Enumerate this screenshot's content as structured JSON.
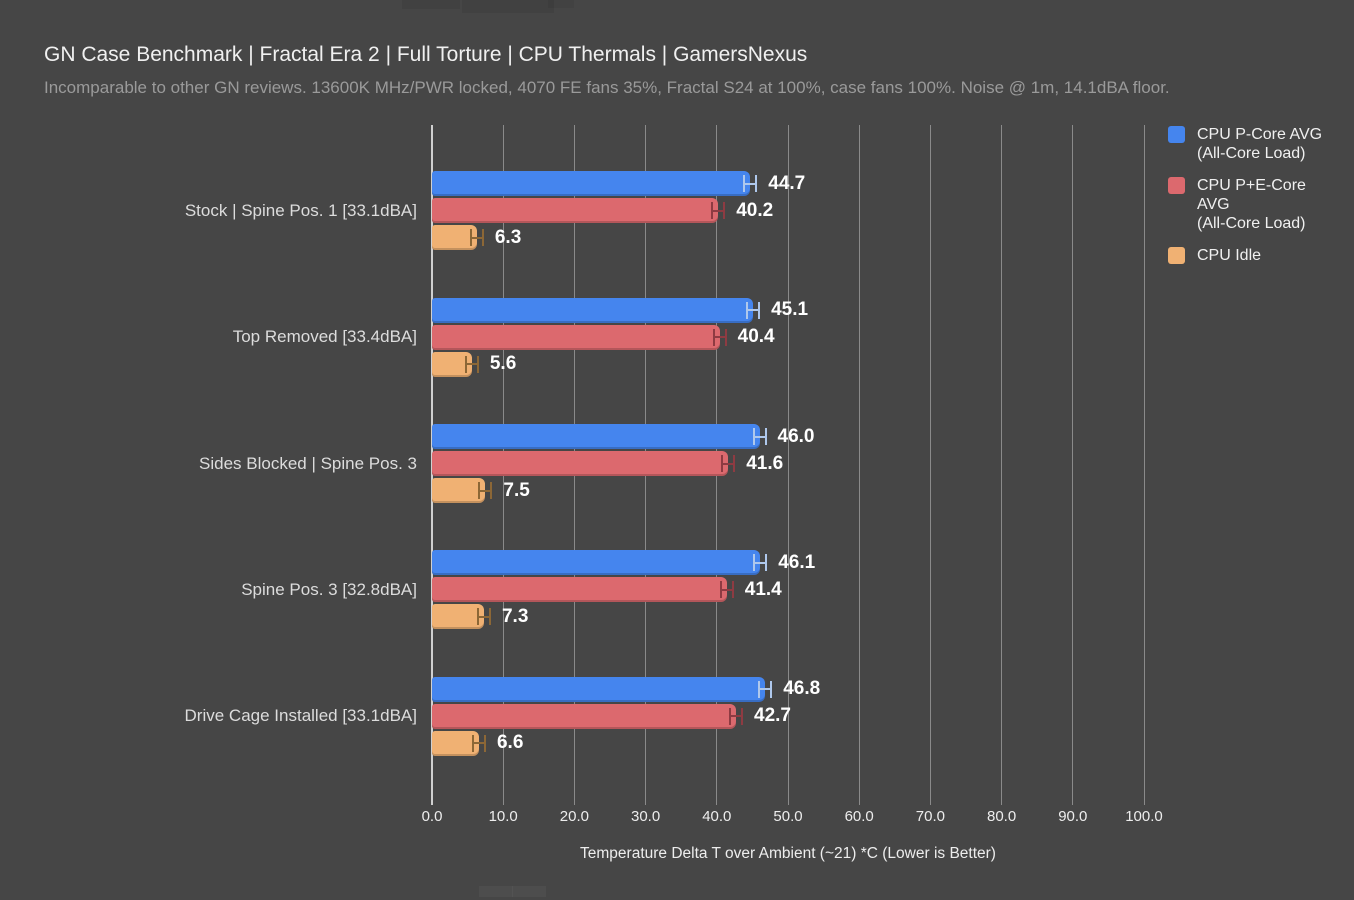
{
  "page": {
    "background": "#464646"
  },
  "chart_data": {
    "type": "bar",
    "orientation": "horizontal",
    "title": "GN Case Benchmark | Fractal Era 2 | Full Torture | CPU Thermals | GamersNexus",
    "subtitle": "Incomparable to other GN reviews. 13600K MHz/PWR locked, 4070 FE fans 35%, Fractal S24 at 100%, case fans 100%. Noise @ 1m, 14.1dBA floor.",
    "categories": [
      "Stock | Spine Pos. 1 [33.1dBA]",
      "Top Removed [33.4dBA]",
      "Sides Blocked | Spine Pos. 3",
      "Spine Pos. 3 [32.8dBA]",
      "Drive Cage Installed [33.1dBA]"
    ],
    "series": [
      {
        "name": "CPU P-Core AVG (All-Core Load)",
        "legend_lines": [
          "CPU P-Core AVG",
          "(All-Core Load)"
        ],
        "color": "#4585EE",
        "error_color": "#AFC8EC",
        "values": [
          44.7,
          45.1,
          46.0,
          46.1,
          46.8
        ]
      },
      {
        "name": "CPU P+E-Core AVG (All-Core Load)",
        "legend_lines": [
          "CPU P+E-Core",
          "AVG",
          "(All-Core Load)"
        ],
        "color": "#DC696E",
        "error_color": "#8E3B42",
        "values": [
          40.2,
          40.4,
          41.6,
          41.4,
          42.7
        ]
      },
      {
        "name": "CPU Idle",
        "legend_lines": [
          "CPU Idle"
        ],
        "color": "#F0B173",
        "error_color": "#8C6736",
        "values": [
          6.3,
          5.6,
          7.5,
          7.3,
          6.6
        ]
      }
    ],
    "xlabel": "Temperature Delta T over Ambient (~21) *C (Lower is Better)",
    "xlim": [
      0,
      100
    ],
    "xticks": [
      "0.0",
      "10.0",
      "20.0",
      "30.0",
      "40.0",
      "50.0",
      "60.0",
      "70.0",
      "80.0",
      "90.0",
      "100.0"
    ],
    "grid": true,
    "legend_position": "upper right",
    "value_label_decimals": 1
  },
  "colors": {
    "background": "#464646",
    "grid": "#969696",
    "zero_axis": "#d0d0d0",
    "title": "#f0f0f0",
    "subtitle": "#9a9a9a",
    "category_label": "#dcdcdc",
    "value_label": "#ffffff",
    "tick_label": "#ededed"
  }
}
